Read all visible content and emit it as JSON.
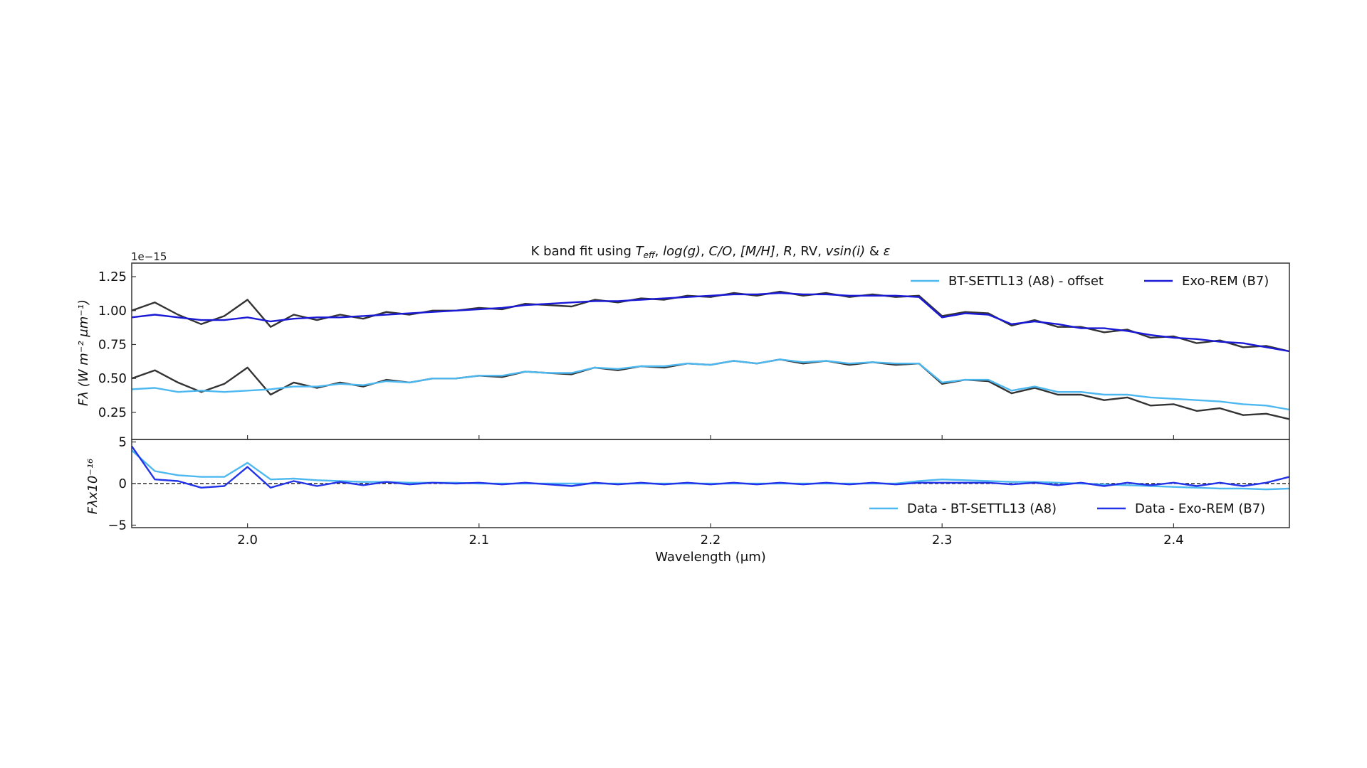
{
  "chart_data": [
    {
      "type": "line",
      "title_parts": [
        {
          "text": "K band fit using ",
          "style": "normal"
        },
        {
          "text": "T",
          "style": "italic"
        },
        {
          "text": "eff",
          "style": "sub"
        },
        {
          "text": ", ",
          "style": "normal"
        },
        {
          "text": "log(g)",
          "style": "italic"
        },
        {
          "text": ", ",
          "style": "normal"
        },
        {
          "text": "C/O",
          "style": "italic"
        },
        {
          "text": ", ",
          "style": "normal"
        },
        {
          "text": "[M/H]",
          "style": "italic"
        },
        {
          "text": ", ",
          "style": "normal"
        },
        {
          "text": "R",
          "style": "italic"
        },
        {
          "text": ", RV, ",
          "style": "normal"
        },
        {
          "text": "vsin(i)",
          "style": "italic"
        },
        {
          "text": " & ",
          "style": "normal"
        },
        {
          "text": "ε",
          "style": "italic"
        }
      ],
      "ylabel": "Fλ (W m⁻² μm⁻¹)",
      "offset_label": "1e−15",
      "xlim": [
        1.95,
        2.45
      ],
      "ylim": [
        0.05,
        1.35
      ],
      "yticks": [
        0.25,
        0.5,
        0.75,
        1.0,
        1.25
      ],
      "ytick_labels": [
        "0.25",
        "0.50",
        "0.75",
        "1.00",
        "1.25"
      ],
      "legend_position": "top-right",
      "x": [
        1.95,
        1.96,
        1.97,
        1.98,
        1.99,
        2.0,
        2.01,
        2.02,
        2.03,
        2.04,
        2.05,
        2.06,
        2.07,
        2.08,
        2.09,
        2.1,
        2.11,
        2.12,
        2.13,
        2.14,
        2.15,
        2.16,
        2.17,
        2.18,
        2.19,
        2.2,
        2.21,
        2.22,
        2.23,
        2.24,
        2.25,
        2.26,
        2.27,
        2.28,
        2.29,
        2.3,
        2.31,
        2.32,
        2.33,
        2.34,
        2.35,
        2.36,
        2.37,
        2.38,
        2.39,
        2.4,
        2.41,
        2.42,
        2.43,
        2.44,
        2.45
      ],
      "series": [
        {
          "color": "#333333",
          "values": [
            1.0,
            1.06,
            0.97,
            0.9,
            0.96,
            1.08,
            0.88,
            0.97,
            0.93,
            0.97,
            0.94,
            0.99,
            0.97,
            1.0,
            1.0,
            1.02,
            1.01,
            1.05,
            1.04,
            1.03,
            1.08,
            1.06,
            1.09,
            1.08,
            1.11,
            1.1,
            1.13,
            1.11,
            1.14,
            1.11,
            1.13,
            1.1,
            1.12,
            1.1,
            1.11,
            0.96,
            0.99,
            0.98,
            0.89,
            0.93,
            0.88,
            0.88,
            0.84,
            0.86,
            0.8,
            0.81,
            0.76,
            0.78,
            0.73,
            0.74,
            0.7
          ]
        },
        {
          "name": "Exo-REM (B7)",
          "color": "#1a1ad6",
          "values": [
            0.95,
            0.97,
            0.95,
            0.93,
            0.93,
            0.95,
            0.92,
            0.94,
            0.95,
            0.95,
            0.96,
            0.97,
            0.98,
            0.99,
            1.0,
            1.01,
            1.02,
            1.04,
            1.05,
            1.06,
            1.07,
            1.07,
            1.08,
            1.09,
            1.1,
            1.11,
            1.12,
            1.12,
            1.13,
            1.12,
            1.12,
            1.11,
            1.11,
            1.11,
            1.1,
            0.95,
            0.98,
            0.97,
            0.9,
            0.92,
            0.9,
            0.87,
            0.87,
            0.85,
            0.82,
            0.8,
            0.79,
            0.77,
            0.76,
            0.73,
            0.7
          ]
        },
        {
          "color": "#333333",
          "values": [
            0.5,
            0.56,
            0.47,
            0.4,
            0.46,
            0.58,
            0.38,
            0.47,
            0.43,
            0.47,
            0.44,
            0.49,
            0.47,
            0.5,
            0.5,
            0.52,
            0.51,
            0.55,
            0.54,
            0.53,
            0.58,
            0.56,
            0.59,
            0.58,
            0.61,
            0.6,
            0.63,
            0.61,
            0.64,
            0.61,
            0.63,
            0.6,
            0.62,
            0.6,
            0.61,
            0.46,
            0.49,
            0.48,
            0.39,
            0.43,
            0.38,
            0.38,
            0.34,
            0.36,
            0.3,
            0.31,
            0.26,
            0.28,
            0.23,
            0.24,
            0.2
          ]
        },
        {
          "name": "BT-SETTL13 (A8) - offset",
          "color": "#4db8f0",
          "values": [
            0.42,
            0.43,
            0.4,
            0.41,
            0.4,
            0.41,
            0.42,
            0.44,
            0.44,
            0.46,
            0.45,
            0.48,
            0.47,
            0.5,
            0.5,
            0.52,
            0.52,
            0.55,
            0.54,
            0.54,
            0.58,
            0.57,
            0.59,
            0.59,
            0.61,
            0.6,
            0.63,
            0.61,
            0.64,
            0.62,
            0.63,
            0.61,
            0.62,
            0.61,
            0.61,
            0.47,
            0.49,
            0.49,
            0.41,
            0.44,
            0.4,
            0.4,
            0.38,
            0.38,
            0.36,
            0.35,
            0.34,
            0.33,
            0.31,
            0.3,
            0.27
          ]
        }
      ],
      "legend": [
        {
          "label": "BT-SETTL13 (A8) - offset",
          "color": "#4db8f0"
        },
        {
          "label": "Exo-REM (B7)",
          "color": "#1a1ad6"
        }
      ]
    },
    {
      "type": "line",
      "xlabel": "Wavelength (μm)",
      "ylabel": "Fλx10⁻¹⁶",
      "xlim": [
        1.95,
        2.45
      ],
      "ylim": [
        -5.3,
        5.3
      ],
      "xticks": [
        2.0,
        2.1,
        2.2,
        2.3,
        2.4
      ],
      "xtick_labels": [
        "2.0",
        "2.1",
        "2.2",
        "2.3",
        "2.4"
      ],
      "yticks": [
        -5,
        0,
        5
      ],
      "ytick_labels": [
        "−5",
        "0",
        "5"
      ],
      "reference_line": 0,
      "legend_position": "bottom-right",
      "x": [
        1.95,
        1.96,
        1.97,
        1.98,
        1.99,
        2.0,
        2.01,
        2.02,
        2.03,
        2.04,
        2.05,
        2.06,
        2.07,
        2.08,
        2.09,
        2.1,
        2.11,
        2.12,
        2.13,
        2.14,
        2.15,
        2.16,
        2.17,
        2.18,
        2.19,
        2.2,
        2.21,
        2.22,
        2.23,
        2.24,
        2.25,
        2.26,
        2.27,
        2.28,
        2.29,
        2.3,
        2.31,
        2.32,
        2.33,
        2.34,
        2.35,
        2.36,
        2.37,
        2.38,
        2.39,
        2.4,
        2.41,
        2.42,
        2.43,
        2.44,
        2.45
      ],
      "series": [
        {
          "name": "Data - BT-SETTL13 (A8)",
          "color": "#4db8f0",
          "values": [
            4.0,
            1.5,
            1.0,
            0.8,
            0.8,
            2.5,
            0.5,
            0.6,
            0.4,
            0.3,
            0.2,
            0.2,
            0.1,
            0.1,
            0.1,
            0,
            0,
            0,
            0,
            0,
            0,
            0,
            0,
            0,
            0,
            0,
            0,
            0,
            0,
            0,
            0,
            0,
            0,
            0,
            0.3,
            0.5,
            0.4,
            0.3,
            0.2,
            0.2,
            0.1,
            0,
            -0.1,
            -0.2,
            -0.3,
            -0.4,
            -0.5,
            -0.6,
            -0.6,
            -0.7,
            -0.6
          ]
        },
        {
          "name": "Data - Exo-REM (B7)",
          "color": "#2233e8",
          "values": [
            4.5,
            0.5,
            0.3,
            -0.5,
            -0.3,
            2.0,
            -0.5,
            0.3,
            -0.3,
            0.2,
            -0.2,
            0.2,
            -0.1,
            0.1,
            0,
            0.1,
            -0.1,
            0.1,
            -0.1,
            -0.3,
            0.1,
            -0.1,
            0.1,
            -0.1,
            0.1,
            -0.1,
            0.1,
            -0.1,
            0.1,
            -0.1,
            0.1,
            -0.1,
            0.1,
            -0.1,
            0.1,
            0.1,
            0.1,
            0.1,
            -0.1,
            0.1,
            -0.2,
            0.1,
            -0.3,
            0.1,
            -0.2,
            0.1,
            -0.3,
            0.1,
            -0.3,
            0.1,
            0.8
          ]
        }
      ],
      "legend": [
        {
          "label": "Data - BT-SETTL13 (A8)",
          "color": "#4db8f0"
        },
        {
          "label": "Data - Exo-REM (B7)",
          "color": "#2233e8"
        }
      ]
    }
  ]
}
